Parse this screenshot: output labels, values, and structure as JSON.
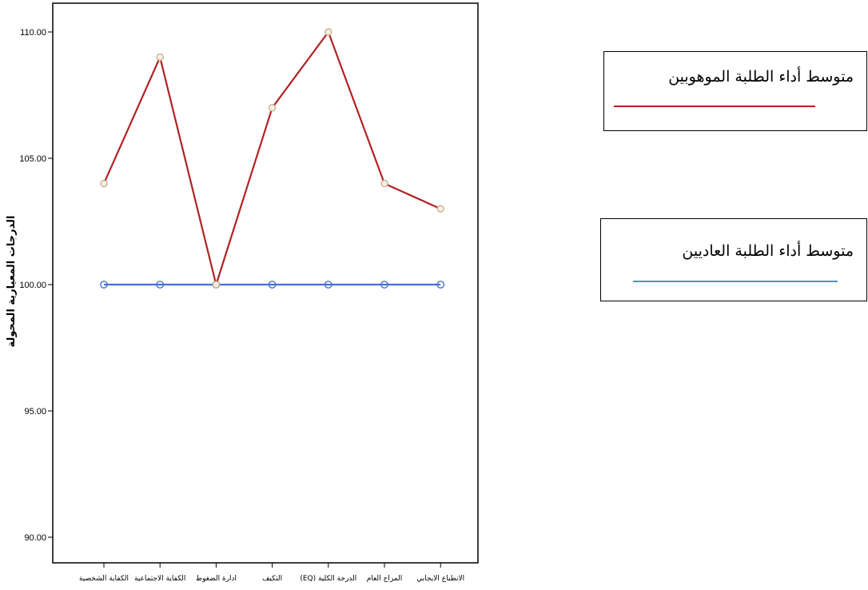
{
  "chart_data": {
    "type": "line",
    "categories": [
      "الكفاية الشخصية",
      "الكفاية الاجتماعية",
      "ادارة الضغوط",
      "التكيف",
      "الدرجة الكلية (EQ)",
      "المزاج العام",
      "الانطباع الايجابي"
    ],
    "series": [
      {
        "name": "متوسط أداء الطلبة الموهوبين",
        "values": [
          104,
          109,
          100,
          107,
          110,
          104,
          103
        ],
        "color": "#b22222"
      },
      {
        "name": "متوسط أداء الطلبة العاديين",
        "values": [
          100,
          100,
          100,
          100,
          100,
          100,
          100
        ],
        "color": "#4a6fd4"
      }
    ],
    "ylabel": "الدرجات المعيارية المحولة",
    "xlabel": "",
    "ylim": [
      88.8,
      110.4
    ],
    "yticks": [
      90,
      95,
      100,
      105,
      110
    ],
    "ytick_labels": [
      "90.00",
      "95.00",
      "100.00",
      "105.00",
      "110.00"
    ],
    "grid": false,
    "legend_position": "right"
  }
}
